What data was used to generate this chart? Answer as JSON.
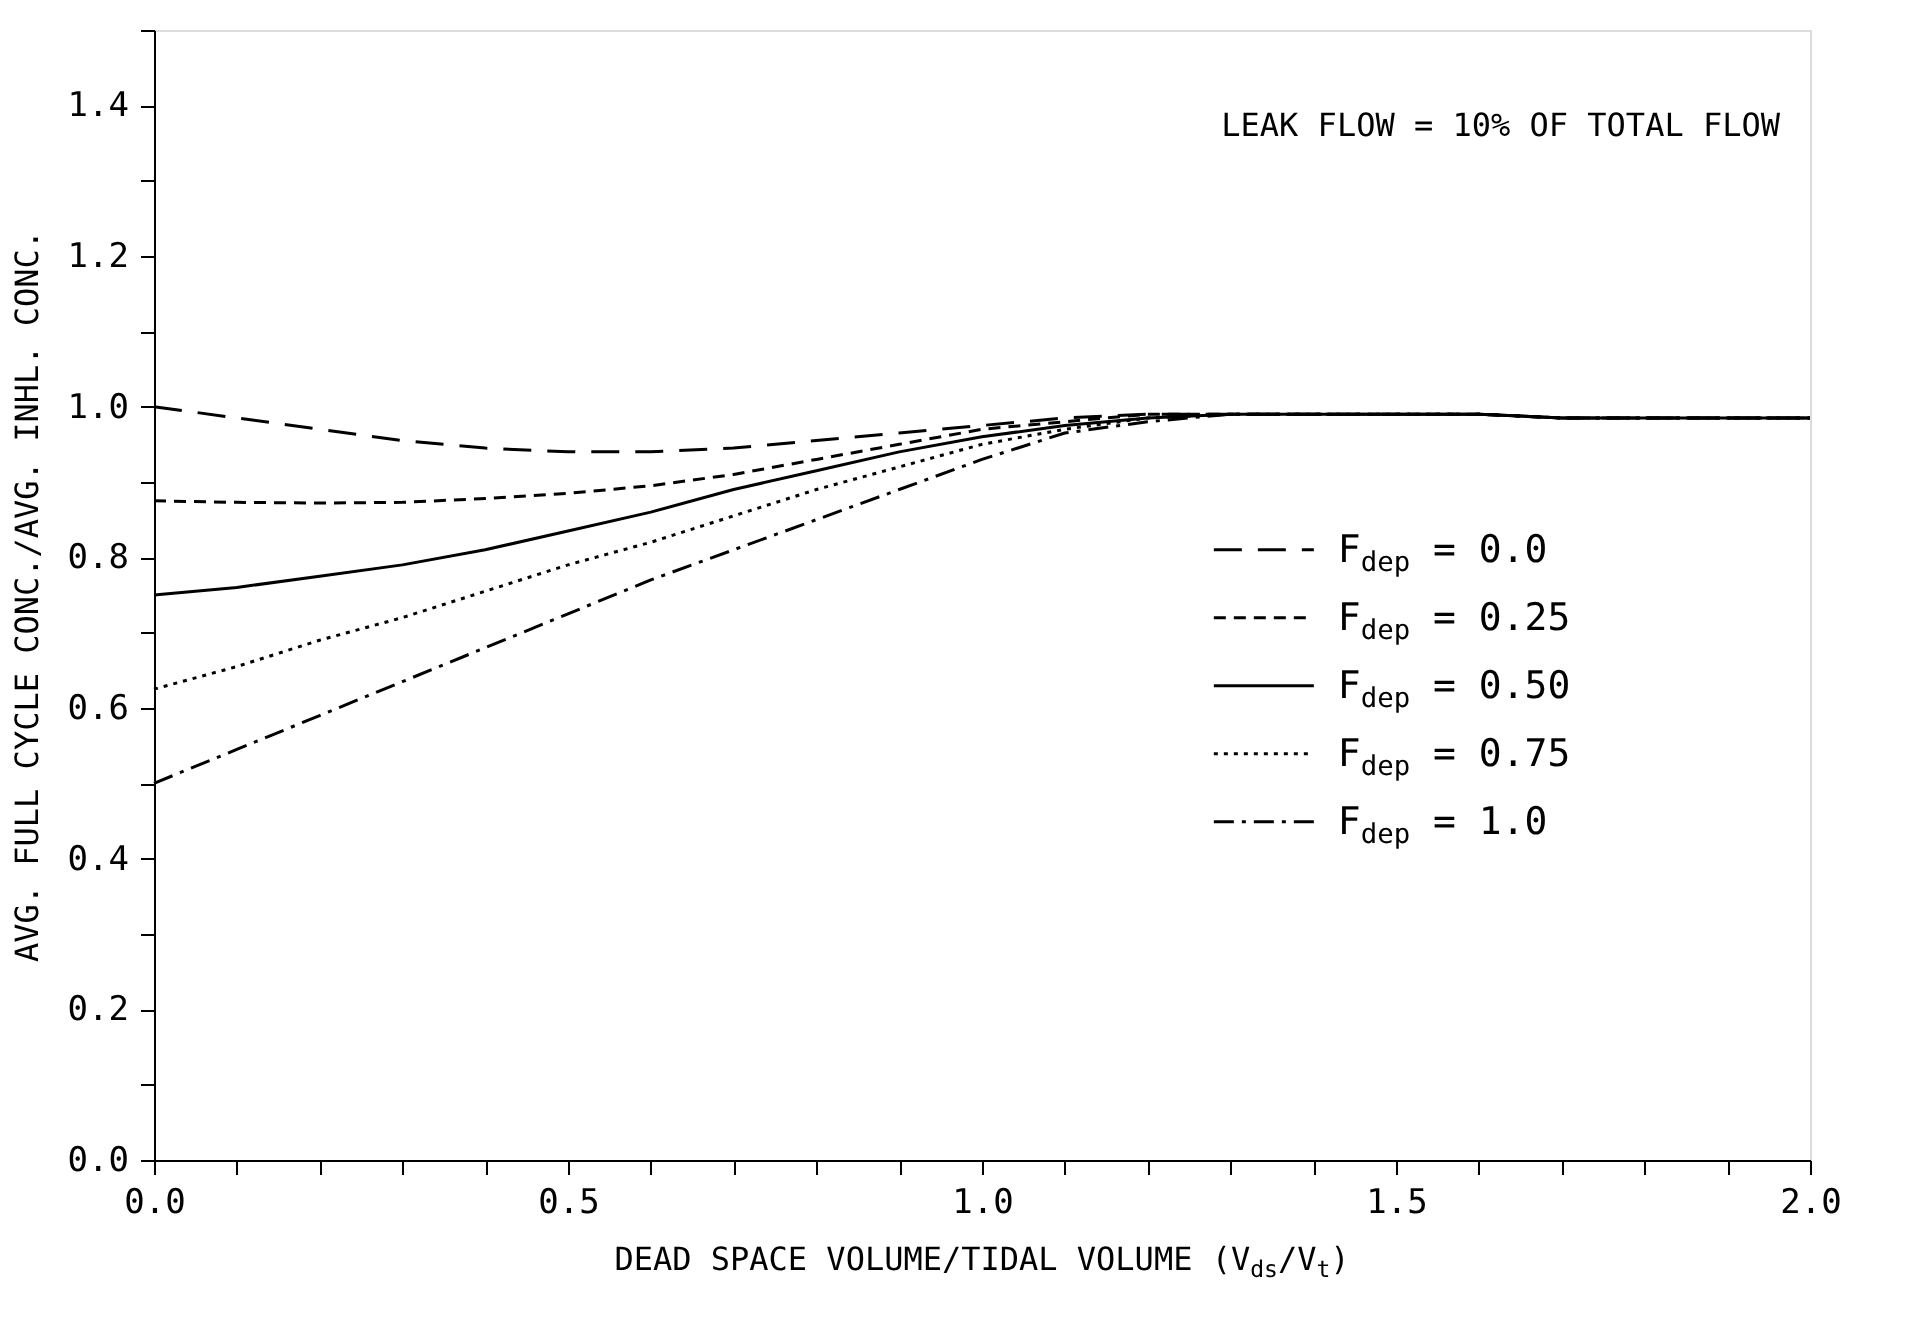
{
  "chart_data": {
    "type": "line",
    "xlabel": "DEAD SPACE VOLUME/TIDAL VOLUME (V$_{ds}$/V$_{t}$)",
    "ylabel": "AVG. FULL CYCLE CONC./AVG. INHL. CONC.",
    "annotations": [
      "LEAK FLOW = 10% OF TOTAL FLOW"
    ],
    "x": [
      0,
      0.1,
      0.2,
      0.3,
      0.4,
      0.5,
      0.6,
      0.7,
      0.8,
      0.9,
      1.0,
      1.1,
      1.2,
      1.3,
      1.4,
      1.5,
      1.6,
      1.7,
      1.8,
      1.9,
      2.0
    ],
    "series": [
      {
        "name": "F$_{dep}$ = 0.0",
        "color": "#000000",
        "line_style": "dashed",
        "values": [
          1.0,
          0.985,
          0.97,
          0.955,
          0.945,
          0.94,
          0.94,
          0.945,
          0.955,
          0.965,
          0.975,
          0.985,
          0.99,
          0.99,
          0.99,
          0.99,
          0.99,
          0.985,
          0.985,
          0.985,
          0.985
        ]
      },
      {
        "name": "F$_{dep}$ = 0.25",
        "color": "#000000",
        "line_style": "shortdash",
        "values": [
          0.875,
          0.873,
          0.872,
          0.873,
          0.878,
          0.885,
          0.895,
          0.91,
          0.93,
          0.95,
          0.97,
          0.98,
          0.99,
          0.99,
          0.99,
          0.99,
          0.99,
          0.985,
          0.985,
          0.985,
          0.985
        ]
      },
      {
        "name": "F$_{dep}$ = 0.50",
        "color": "#000000",
        "line_style": "solid",
        "values": [
          0.75,
          0.76,
          0.775,
          0.79,
          0.81,
          0.835,
          0.86,
          0.89,
          0.915,
          0.94,
          0.96,
          0.975,
          0.985,
          0.99,
          0.99,
          0.99,
          0.99,
          0.985,
          0.985,
          0.985,
          0.985
        ]
      },
      {
        "name": "F$_{dep}$ = 0.75",
        "color": "#000000",
        "line_style": "dotted",
        "values": [
          0.625,
          0.655,
          0.69,
          0.72,
          0.755,
          0.79,
          0.82,
          0.855,
          0.89,
          0.92,
          0.95,
          0.97,
          0.985,
          0.99,
          0.99,
          0.99,
          0.99,
          0.985,
          0.985,
          0.985,
          0.985
        ]
      },
      {
        "name": "F$_{dep}$ = 1.0",
        "color": "#000000",
        "line_style": "dashdot",
        "values": [
          0.5,
          0.545,
          0.59,
          0.635,
          0.68,
          0.725,
          0.77,
          0.81,
          0.85,
          0.89,
          0.93,
          0.965,
          0.98,
          0.99,
          0.99,
          0.99,
          0.99,
          0.985,
          0.985,
          0.985,
          0.985
        ]
      }
    ],
    "xlim": [
      0,
      2.0
    ],
    "xticks": [
      {
        "value": 0,
        "label": "0.0"
      },
      {
        "value": 0.1,
        "label": null
      },
      {
        "value": 0.2,
        "label": null
      },
      {
        "value": 0.3,
        "label": null
      },
      {
        "value": 0.4,
        "label": null
      },
      {
        "value": 0.5,
        "label": "0.5"
      },
      {
        "value": 0.6,
        "label": null
      },
      {
        "value": 0.7,
        "label": null
      },
      {
        "value": 0.8,
        "label": null
      },
      {
        "value": 0.9,
        "label": null
      },
      {
        "value": 1.0,
        "label": "1.0"
      },
      {
        "value": 1.1,
        "label": null
      },
      {
        "value": 1.2,
        "label": null
      },
      {
        "value": 1.3,
        "label": null
      },
      {
        "value": 1.4,
        "label": null
      },
      {
        "value": 1.5,
        "label": "1.5"
      },
      {
        "value": 1.6,
        "label": null
      },
      {
        "value": 1.7,
        "label": null
      },
      {
        "value": 1.8,
        "label": null
      },
      {
        "value": 1.9,
        "label": null
      },
      {
        "value": 2.0,
        "label": "2.0"
      }
    ],
    "ylim": [
      0,
      1.5
    ],
    "yticks": [
      {
        "value": 0,
        "label": "0.0"
      },
      {
        "value": 0.1,
        "label": null
      },
      {
        "value": 0.2,
        "label": "0.2"
      },
      {
        "value": 0.3,
        "label": null
      },
      {
        "value": 0.4,
        "label": "0.4"
      },
      {
        "value": 0.5,
        "label": null
      },
      {
        "value": 0.6,
        "label": "0.6"
      },
      {
        "value": 0.7,
        "label": null
      },
      {
        "value": 0.8,
        "label": "0.8"
      },
      {
        "value": 0.9,
        "label": null
      },
      {
        "value": 1.0,
        "label": "1.0"
      },
      {
        "value": 1.1,
        "label": null
      },
      {
        "value": 1.2,
        "label": "1.2"
      },
      {
        "value": 1.3,
        "label": null
      },
      {
        "value": 1.4,
        "label": "1.4"
      },
      {
        "value": 1.5,
        "label": null
      }
    ],
    "grid": false,
    "legend": "right",
    "marker": "none"
  }
}
